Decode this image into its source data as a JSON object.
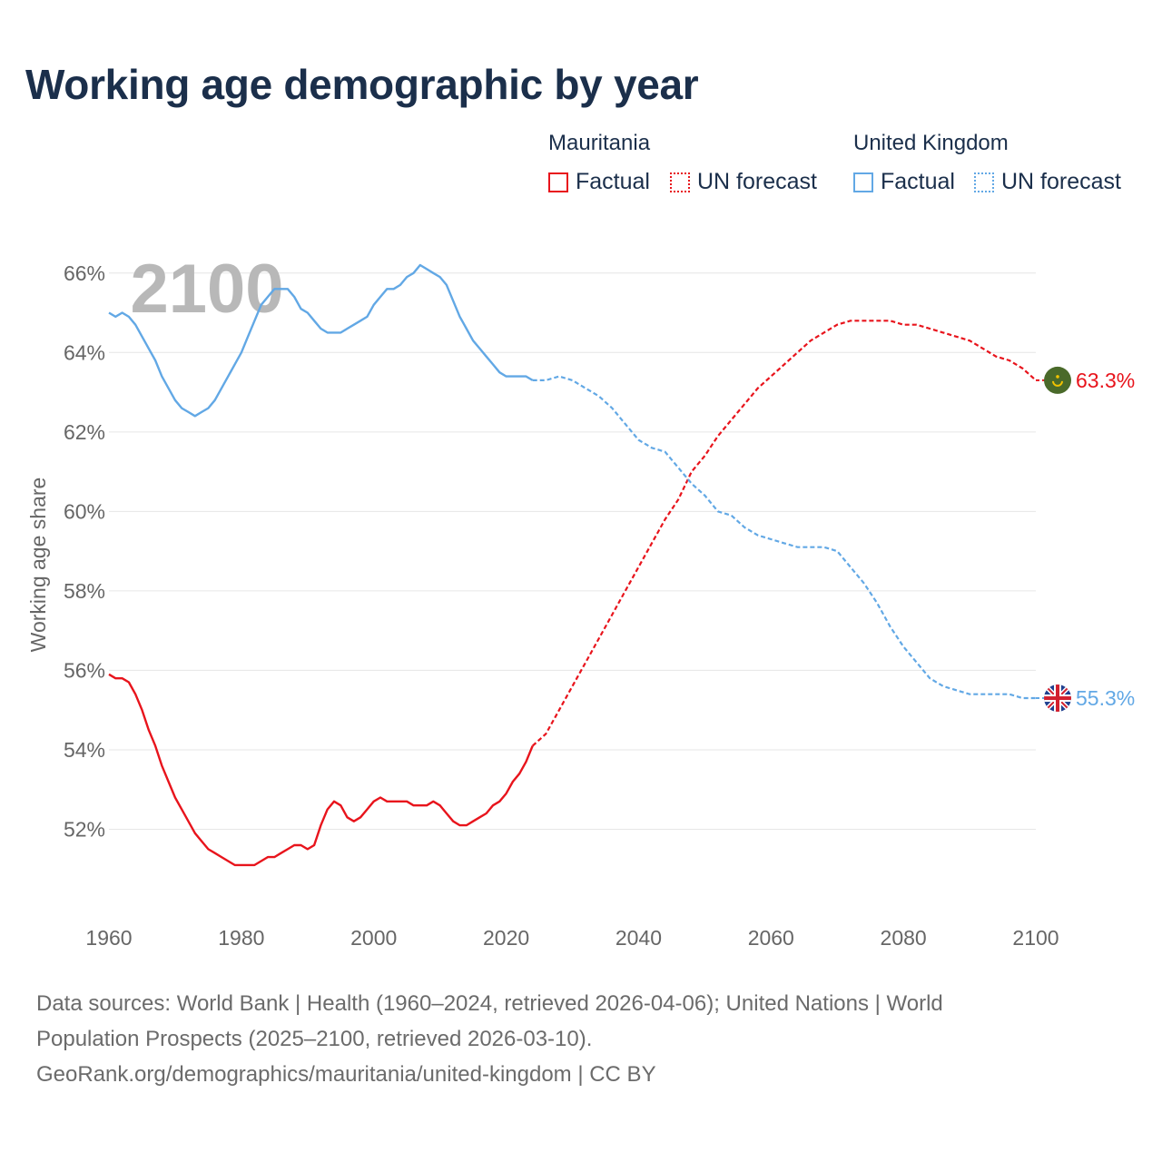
{
  "title": "Working age demographic by year",
  "legend": {
    "groups": [
      {
        "country": "Mauritania",
        "factual_label": "Factual",
        "forecast_label": "UN forecast",
        "color": "#e8141c"
      },
      {
        "country": "United Kingdom",
        "factual_label": "Factual",
        "forecast_label": "UN forecast",
        "color": "#62a8e5"
      }
    ]
  },
  "year_overlay": "2100",
  "footer": {
    "line1": "Data sources: World Bank | Health (1960–2024, retrieved 2026-04-06); United Nations | World",
    "line2": "Population Prospects (2025–2100, retrieved 2026-03-10).",
    "line3": "GeoRank.org/demographics/mauritania/united-kingdom | CC BY"
  },
  "chart_data": {
    "type": "line",
    "title": "Working age demographic by year",
    "xlabel": "",
    "ylabel": "Working age share",
    "xlim": [
      1960,
      2100
    ],
    "ylim": [
      50,
      67
    ],
    "x_ticks": [
      1960,
      1980,
      2000,
      2020,
      2040,
      2060,
      2080,
      2100
    ],
    "x_tick_labels": [
      "1960",
      "1980",
      "2000",
      "2020",
      "2040",
      "2060",
      "2080",
      "2100"
    ],
    "y_ticks": [
      52,
      54,
      56,
      58,
      60,
      62,
      64,
      66
    ],
    "y_tick_labels": [
      "52%",
      "54%",
      "56%",
      "58%",
      "60%",
      "62%",
      "64%",
      "66%"
    ],
    "grid": true,
    "factual_end_year": 2024,
    "series": [
      {
        "name": "Mauritania",
        "color": "#e8141c",
        "end_label": "63.3%",
        "points": [
          [
            1960,
            55.9
          ],
          [
            1961,
            55.8
          ],
          [
            1962,
            55.8
          ],
          [
            1963,
            55.7
          ],
          [
            1964,
            55.4
          ],
          [
            1965,
            55.0
          ],
          [
            1966,
            54.5
          ],
          [
            1967,
            54.1
          ],
          [
            1968,
            53.6
          ],
          [
            1969,
            53.2
          ],
          [
            1970,
            52.8
          ],
          [
            1971,
            52.5
          ],
          [
            1972,
            52.2
          ],
          [
            1973,
            51.9
          ],
          [
            1974,
            51.7
          ],
          [
            1975,
            51.5
          ],
          [
            1976,
            51.4
          ],
          [
            1977,
            51.3
          ],
          [
            1978,
            51.2
          ],
          [
            1979,
            51.1
          ],
          [
            1980,
            51.1
          ],
          [
            1981,
            51.1
          ],
          [
            1982,
            51.1
          ],
          [
            1983,
            51.2
          ],
          [
            1984,
            51.3
          ],
          [
            1985,
            51.3
          ],
          [
            1986,
            51.4
          ],
          [
            1987,
            51.5
          ],
          [
            1988,
            51.6
          ],
          [
            1989,
            51.6
          ],
          [
            1990,
            51.5
          ],
          [
            1991,
            51.6
          ],
          [
            1992,
            52.1
          ],
          [
            1993,
            52.5
          ],
          [
            1994,
            52.7
          ],
          [
            1995,
            52.6
          ],
          [
            1996,
            52.3
          ],
          [
            1997,
            52.2
          ],
          [
            1998,
            52.3
          ],
          [
            1999,
            52.5
          ],
          [
            2000,
            52.7
          ],
          [
            2001,
            52.8
          ],
          [
            2002,
            52.7
          ],
          [
            2003,
            52.7
          ],
          [
            2004,
            52.7
          ],
          [
            2005,
            52.7
          ],
          [
            2006,
            52.6
          ],
          [
            2007,
            52.6
          ],
          [
            2008,
            52.6
          ],
          [
            2009,
            52.7
          ],
          [
            2010,
            52.6
          ],
          [
            2011,
            52.4
          ],
          [
            2012,
            52.2
          ],
          [
            2013,
            52.1
          ],
          [
            2014,
            52.1
          ],
          [
            2015,
            52.2
          ],
          [
            2016,
            52.3
          ],
          [
            2017,
            52.4
          ],
          [
            2018,
            52.6
          ],
          [
            2019,
            52.7
          ],
          [
            2020,
            52.9
          ],
          [
            2021,
            53.2
          ],
          [
            2022,
            53.4
          ],
          [
            2023,
            53.7
          ],
          [
            2024,
            54.1
          ],
          [
            2026,
            54.4
          ],
          [
            2028,
            55.0
          ],
          [
            2030,
            55.6
          ],
          [
            2032,
            56.2
          ],
          [
            2034,
            56.8
          ],
          [
            2036,
            57.4
          ],
          [
            2038,
            58.0
          ],
          [
            2040,
            58.6
          ],
          [
            2042,
            59.2
          ],
          [
            2044,
            59.8
          ],
          [
            2046,
            60.3
          ],
          [
            2048,
            61.0
          ],
          [
            2050,
            61.4
          ],
          [
            2052,
            61.9
          ],
          [
            2054,
            62.3
          ],
          [
            2056,
            62.7
          ],
          [
            2058,
            63.1
          ],
          [
            2060,
            63.4
          ],
          [
            2062,
            63.7
          ],
          [
            2064,
            64.0
          ],
          [
            2066,
            64.3
          ],
          [
            2068,
            64.5
          ],
          [
            2070,
            64.7
          ],
          [
            2072,
            64.8
          ],
          [
            2074,
            64.8
          ],
          [
            2076,
            64.8
          ],
          [
            2078,
            64.8
          ],
          [
            2080,
            64.7
          ],
          [
            2082,
            64.7
          ],
          [
            2084,
            64.6
          ],
          [
            2086,
            64.5
          ],
          [
            2088,
            64.4
          ],
          [
            2090,
            64.3
          ],
          [
            2092,
            64.1
          ],
          [
            2094,
            63.9
          ],
          [
            2096,
            63.8
          ],
          [
            2098,
            63.6
          ],
          [
            2100,
            63.3
          ]
        ]
      },
      {
        "name": "United Kingdom",
        "color": "#62a8e5",
        "end_label": "55.3%",
        "points": [
          [
            1960,
            65.0
          ],
          [
            1961,
            64.9
          ],
          [
            1962,
            65.0
          ],
          [
            1963,
            64.9
          ],
          [
            1964,
            64.7
          ],
          [
            1965,
            64.4
          ],
          [
            1966,
            64.1
          ],
          [
            1967,
            63.8
          ],
          [
            1968,
            63.4
          ],
          [
            1969,
            63.1
          ],
          [
            1970,
            62.8
          ],
          [
            1971,
            62.6
          ],
          [
            1972,
            62.5
          ],
          [
            1973,
            62.4
          ],
          [
            1974,
            62.5
          ],
          [
            1975,
            62.6
          ],
          [
            1976,
            62.8
          ],
          [
            1977,
            63.1
          ],
          [
            1978,
            63.4
          ],
          [
            1979,
            63.7
          ],
          [
            1980,
            64.0
          ],
          [
            1981,
            64.4
          ],
          [
            1982,
            64.8
          ],
          [
            1983,
            65.2
          ],
          [
            1984,
            65.4
          ],
          [
            1985,
            65.6
          ],
          [
            1986,
            65.6
          ],
          [
            1987,
            65.6
          ],
          [
            1988,
            65.4
          ],
          [
            1989,
            65.1
          ],
          [
            1990,
            65.0
          ],
          [
            1991,
            64.8
          ],
          [
            1992,
            64.6
          ],
          [
            1993,
            64.5
          ],
          [
            1994,
            64.5
          ],
          [
            1995,
            64.5
          ],
          [
            1996,
            64.6
          ],
          [
            1997,
            64.7
          ],
          [
            1998,
            64.8
          ],
          [
            1999,
            64.9
          ],
          [
            2000,
            65.2
          ],
          [
            2001,
            65.4
          ],
          [
            2002,
            65.6
          ],
          [
            2003,
            65.6
          ],
          [
            2004,
            65.7
          ],
          [
            2005,
            65.9
          ],
          [
            2006,
            66.0
          ],
          [
            2007,
            66.2
          ],
          [
            2008,
            66.1
          ],
          [
            2009,
            66.0
          ],
          [
            2010,
            65.9
          ],
          [
            2011,
            65.7
          ],
          [
            2012,
            65.3
          ],
          [
            2013,
            64.9
          ],
          [
            2014,
            64.6
          ],
          [
            2015,
            64.3
          ],
          [
            2016,
            64.1
          ],
          [
            2017,
            63.9
          ],
          [
            2018,
            63.7
          ],
          [
            2019,
            63.5
          ],
          [
            2020,
            63.4
          ],
          [
            2021,
            63.4
          ],
          [
            2022,
            63.4
          ],
          [
            2023,
            63.4
          ],
          [
            2024,
            63.3
          ],
          [
            2026,
            63.3
          ],
          [
            2028,
            63.4
          ],
          [
            2030,
            63.3
          ],
          [
            2032,
            63.1
          ],
          [
            2034,
            62.9
          ],
          [
            2036,
            62.6
          ],
          [
            2038,
            62.2
          ],
          [
            2040,
            61.8
          ],
          [
            2042,
            61.6
          ],
          [
            2044,
            61.5
          ],
          [
            2046,
            61.1
          ],
          [
            2048,
            60.7
          ],
          [
            2050,
            60.4
          ],
          [
            2052,
            60.0
          ],
          [
            2054,
            59.9
          ],
          [
            2056,
            59.6
          ],
          [
            2058,
            59.4
          ],
          [
            2060,
            59.3
          ],
          [
            2062,
            59.2
          ],
          [
            2064,
            59.1
          ],
          [
            2066,
            59.1
          ],
          [
            2068,
            59.1
          ],
          [
            2070,
            59.0
          ],
          [
            2072,
            58.6
          ],
          [
            2074,
            58.2
          ],
          [
            2076,
            57.7
          ],
          [
            2078,
            57.1
          ],
          [
            2080,
            56.6
          ],
          [
            2082,
            56.2
          ],
          [
            2084,
            55.8
          ],
          [
            2086,
            55.6
          ],
          [
            2088,
            55.5
          ],
          [
            2090,
            55.4
          ],
          [
            2092,
            55.4
          ],
          [
            2094,
            55.4
          ],
          [
            2096,
            55.4
          ],
          [
            2098,
            55.3
          ],
          [
            2100,
            55.3
          ]
        ]
      }
    ]
  }
}
